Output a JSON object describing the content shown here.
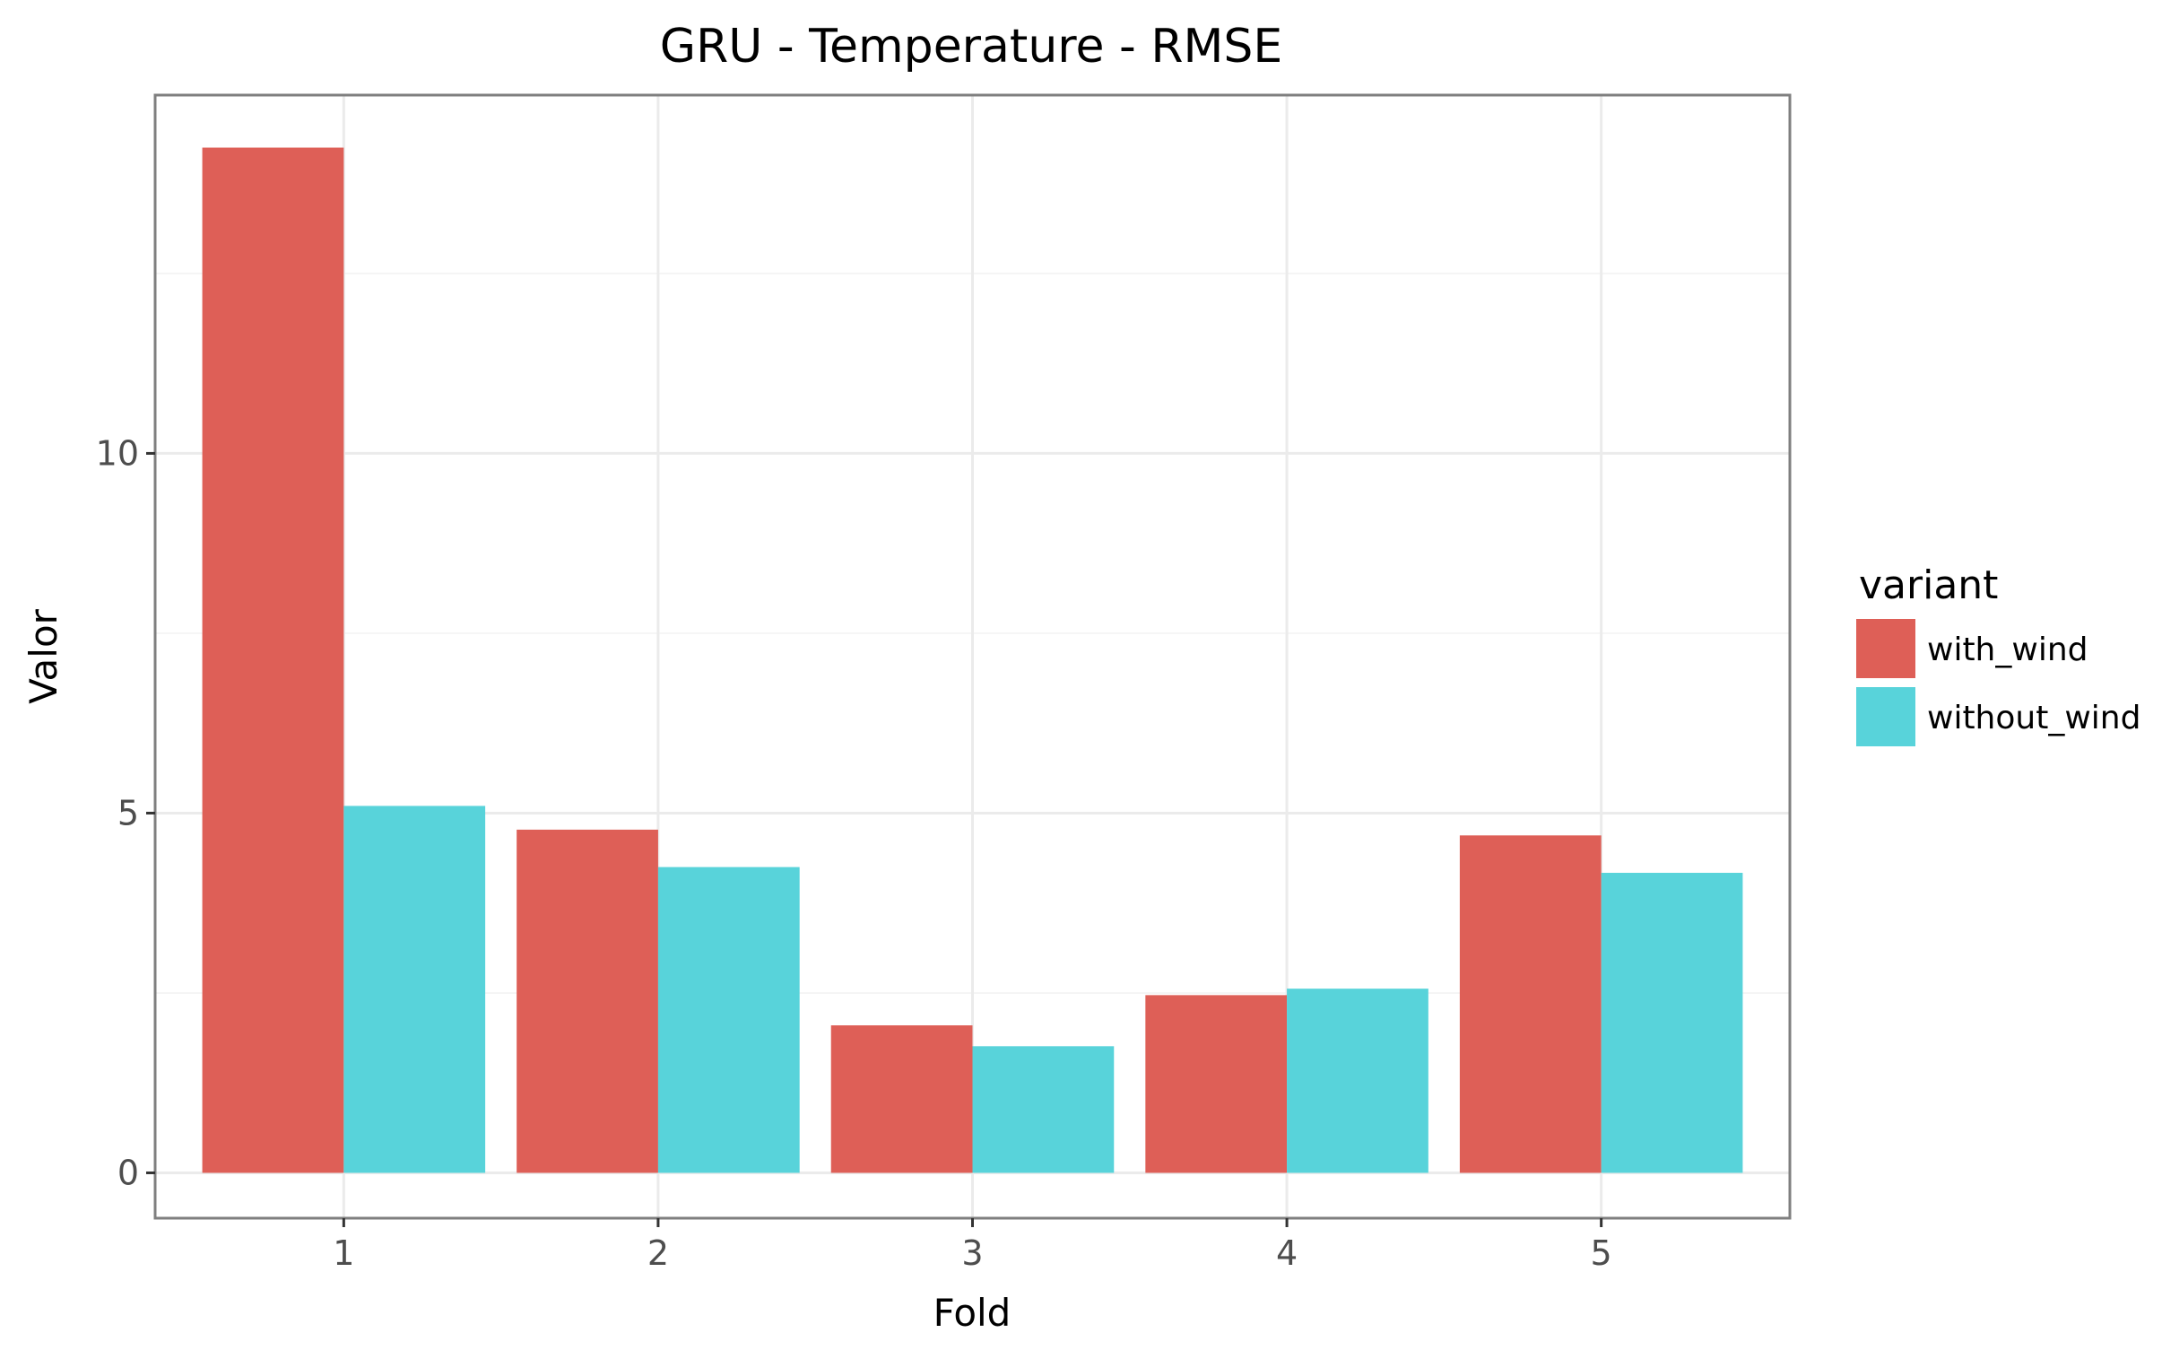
{
  "chart_data": {
    "type": "bar",
    "title": "GRU - Temperature - RMSE",
    "xlabel": "Fold",
    "ylabel": "Valor",
    "categories": [
      "1",
      "2",
      "3",
      "4",
      "5"
    ],
    "series": [
      {
        "name": "with_wind",
        "color": "#de5f57",
        "values": [
          14.25,
          4.77,
          2.05,
          2.47,
          4.69
        ]
      },
      {
        "name": "without_wind",
        "color": "#58d3da",
        "values": [
          5.1,
          4.25,
          1.76,
          2.56,
          4.17
        ]
      }
    ],
    "ylim": [
      -0.63,
      14.98
    ],
    "yticks": [
      0,
      5,
      10
    ],
    "yticks_minor": [
      2.5,
      7.5,
      12.5
    ],
    "yticklabels": [
      "0",
      "5",
      "10"
    ],
    "grid": true,
    "legend": {
      "title": "variant",
      "position": "right"
    },
    "colors": {
      "panel_border": "#7f7f7f",
      "grid_major": "#ebebeb",
      "grid_minor": "#f5f5f5",
      "tick_label": "#4d4d4d"
    }
  }
}
